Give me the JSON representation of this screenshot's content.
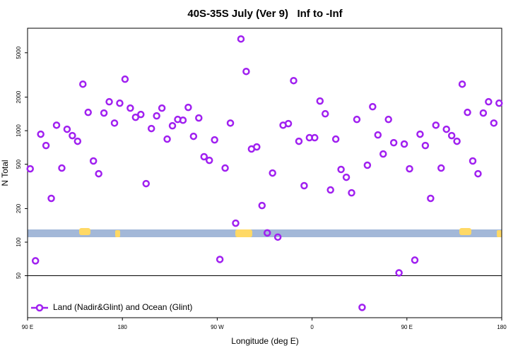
{
  "chart_data": {
    "type": "scatter",
    "title": "40S-35S July (Ver 9)   Inf to -Inf",
    "x_label": "Longitude (deg E)",
    "y_label": "N Total",
    "log_y": true,
    "legend": "bottom-left",
    "hline": 50,
    "xlim": [
      90,
      540
    ],
    "xticks": [
      {
        "value": 90,
        "label": "90 E"
      },
      180,
      {
        "value": 270,
        "label": "90 W"
      },
      {
        "value": 360,
        "label": "0"
      },
      {
        "value": 450,
        "label": "90 E"
      },
      {
        "value": 540,
        "label": "180"
      }
    ],
    "ylim": [
      21,
      8300
    ],
    "yticks": [
      50,
      100,
      200,
      500,
      1000,
      2000,
      5000
    ],
    "series": [
      {
        "name": "Land (Nadir&Glint) and Ocean (Glint)",
        "color": "#a020f0",
        "x": [
          92.5,
          97.5,
          102.5,
          107.5,
          112.5,
          117.5,
          122.5,
          127.5,
          132.5,
          137.5,
          142.5,
          147.5,
          152.5,
          157.5,
          162.5,
          167.5,
          172.5,
          177.5,
          182.5,
          187.5,
          192.5,
          197.5,
          202.5,
          207.5,
          212.5,
          217.5,
          222.5,
          227.5,
          232.5,
          237.5,
          242.5,
          247.5,
          252.5,
          257.5,
          262.5,
          267.5,
          272.5,
          277.5,
          282.5,
          287.5,
          292.5,
          297.5,
          302.5,
          307.5,
          312.5,
          317.5,
          322.5,
          327.5,
          332.5,
          337.5,
          342.5,
          347.5,
          352.5,
          357.5,
          362.5,
          367.5,
          372.5,
          377.5,
          382.5,
          387.5,
          392.5,
          397.5,
          402.5,
          407.5,
          412.5,
          417.5,
          422.5,
          427.5,
          432.5,
          437.5,
          442.5,
          447.5,
          452.5,
          457.5,
          462.5,
          467.5,
          472.5,
          477.5,
          482.5,
          487.5,
          492.5,
          497.5,
          502.5,
          507.5,
          512.5,
          517.5,
          522.5,
          527.5,
          532.5,
          537.5
        ],
        "values": [
          455,
          68,
          930,
          736,
          247,
          1120,
          462,
          1030,
          903,
          804,
          2615,
          1460,
          535,
          411,
          1440,
          1817,
          1170,
          1765,
          2897,
          1594,
          1319,
          1398,
          335,
          1045,
          1358,
          1594,
          840,
          1107,
          1262,
          1242,
          1618,
          890,
          1300,
          584,
          542,
          827,
          70,
          462,
          1170,
          148,
          6650,
          3400,
          685,
          715,
          213,
          121,
          417,
          111,
          1120,
          1157,
          2812,
          804,
          321,
          865,
          865,
          1845,
          1418,
          294,
          840,
          449,
          382,
          277,
          1262,
          26,
          490,
          1641,
          916,
          618,
          1262,
          780,
          53,
          759,
          455,
          69,
          930,
          736,
          247,
          1120,
          462,
          1030,
          903,
          804,
          2615,
          1460,
          535,
          411,
          1440,
          1817,
          1170,
          1765
        ]
      }
    ]
  }
}
